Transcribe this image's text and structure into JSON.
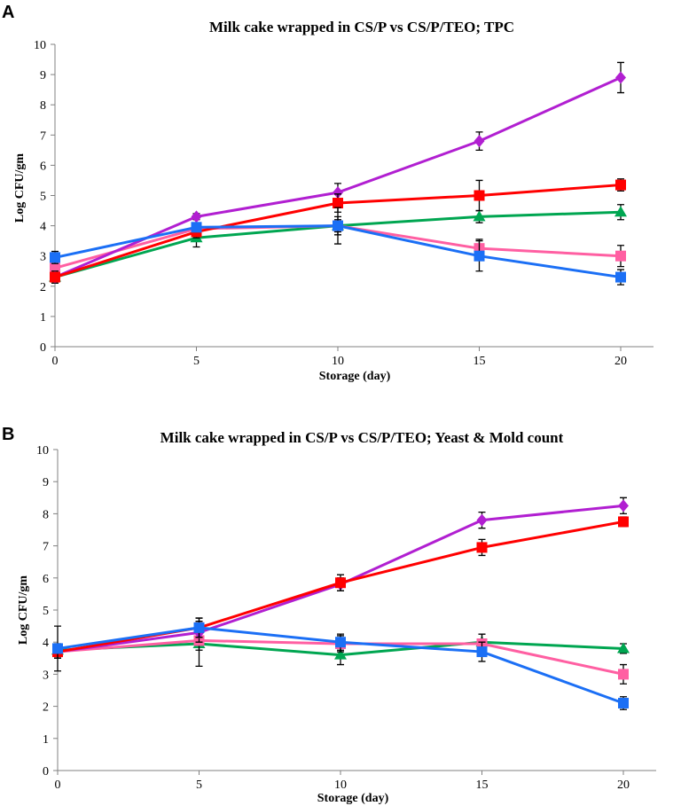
{
  "chart_data": [
    {
      "panel": "A",
      "type": "line",
      "title": "Milk cake wrapped in CS/P vs CS/P/TEO; TPC",
      "xlabel": "Storage (day)",
      "ylabel": "Log CFU/gm",
      "x": [
        0,
        5,
        10,
        15,
        20
      ],
      "xticks": [
        "0",
        "5",
        "10",
        "15",
        "20"
      ],
      "yticks": [
        "0",
        "1",
        "2",
        "3",
        "4",
        "5",
        "6",
        "7",
        "8",
        "9",
        "10"
      ],
      "ylim": [
        0,
        10
      ],
      "series": [
        {
          "color": "#00a651",
          "marker": "triangle",
          "values": [
            2.3,
            3.6,
            4.0,
            4.3,
            4.45
          ],
          "errors": [
            0.2,
            0.3,
            0.3,
            0.2,
            0.25
          ]
        },
        {
          "color": "#ff5fa2",
          "marker": "square",
          "values": [
            2.6,
            3.9,
            4.0,
            3.25,
            3.0
          ],
          "errors": [
            0.2,
            0.2,
            0.2,
            0.3,
            0.35
          ]
        },
        {
          "color": "#b11fd1",
          "marker": "diamond",
          "values": [
            2.3,
            4.3,
            5.1,
            6.8,
            8.9
          ],
          "errors": [
            0.2,
            0.1,
            0.3,
            0.3,
            0.5
          ]
        },
        {
          "color": "#ff0000",
          "marker": "square",
          "values": [
            2.3,
            3.8,
            4.75,
            5.0,
            5.35
          ],
          "errors": [
            0.1,
            0.2,
            0.3,
            0.5,
            0.2
          ]
        },
        {
          "color": "#1b6ff5",
          "marker": "square",
          "values": [
            2.95,
            3.95,
            4.0,
            3.0,
            2.3
          ],
          "errors": [
            0.2,
            0.15,
            0.6,
            0.5,
            0.25
          ]
        }
      ]
    },
    {
      "panel": "B",
      "type": "line",
      "title": "Milk cake wrapped in CS/P vs CS/P/TEO; Yeast & Mold count",
      "xlabel": "Storage (day)",
      "ylabel": "Log CFU/gm",
      "x": [
        0,
        5,
        10,
        15,
        20
      ],
      "xticks": [
        "0",
        "5",
        "10",
        "15",
        "20"
      ],
      "yticks": [
        "0",
        "1",
        "2",
        "3",
        "4",
        "5",
        "6",
        "7",
        "8",
        "9",
        "10"
      ],
      "ylim": [
        0,
        10
      ],
      "series": [
        {
          "color": "#00a651",
          "marker": "triangle",
          "values": [
            3.75,
            3.95,
            3.6,
            4.0,
            3.8
          ],
          "errors": [
            0.2,
            0.7,
            0.3,
            0.25,
            0.15
          ]
        },
        {
          "color": "#ff5fa2",
          "marker": "square",
          "values": [
            3.7,
            4.05,
            3.95,
            3.95,
            3.0
          ],
          "errors": [
            0.2,
            0.3,
            0.25,
            0.3,
            0.3
          ]
        },
        {
          "color": "#b11fd1",
          "marker": "diamond",
          "values": [
            3.7,
            4.3,
            5.8,
            7.8,
            8.25
          ],
          "errors": [
            0.2,
            0.3,
            0.2,
            0.25,
            0.25
          ]
        },
        {
          "color": "#ff0000",
          "marker": "square",
          "values": [
            3.7,
            4.45,
            5.85,
            6.95,
            7.75
          ],
          "errors": [
            0.2,
            0.3,
            0.25,
            0.25,
            0.15
          ]
        },
        {
          "color": "#1b6ff5",
          "marker": "square",
          "values": [
            3.8,
            4.45,
            4.0,
            3.7,
            2.1
          ],
          "errors": [
            0.7,
            0.3,
            0.25,
            0.3,
            0.2
          ]
        }
      ]
    }
  ]
}
